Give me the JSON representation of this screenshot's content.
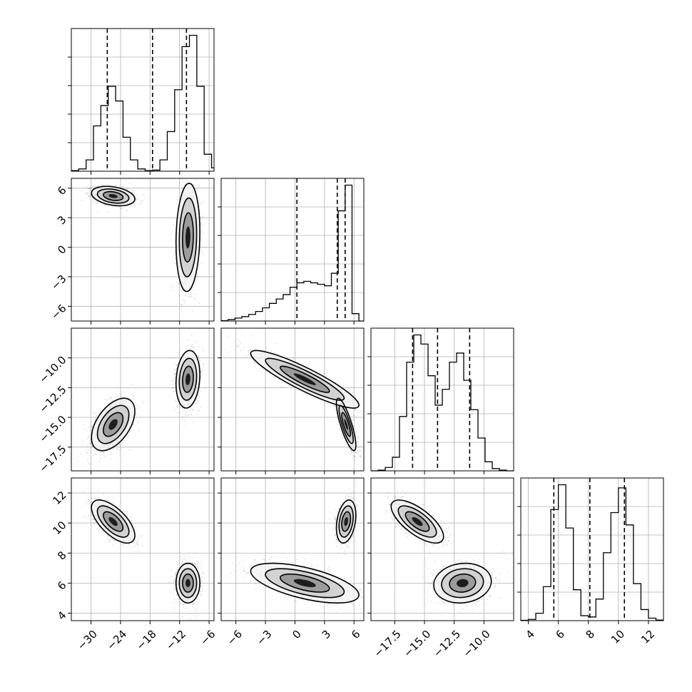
{
  "chart_data": {
    "type": "corner",
    "title": "",
    "parameters": [
      {
        "range": [
          -34,
          -5
        ],
        "ticks": [
          -30,
          -24,
          -18,
          -12,
          -6
        ],
        "tick_labels": [
          "−30",
          "−24",
          "−18",
          "−12",
          "−6"
        ],
        "quantiles": [
          -26.7,
          -17.5,
          -10.6
        ],
        "hist": {
          "edges": [
            -34,
            -32.5,
            -31,
            -29.5,
            -28,
            -26.5,
            -25,
            -23.5,
            -22,
            -20.5,
            -19,
            -17.5,
            -16,
            -14.5,
            -13,
            -11.5,
            -10,
            -8.5,
            -7,
            -5.5,
            -5
          ],
          "counts": [
            0.5,
            2,
            10,
            40,
            58,
            75,
            62,
            30,
            10,
            2,
            0.5,
            1,
            10,
            35,
            72,
            110,
            120,
            75,
            15,
            3
          ]
        }
      },
      {
        "range": [
          -7.5,
          7
        ],
        "ticks": [
          -6,
          -3,
          0,
          3,
          6
        ],
        "tick_labels": [
          "−6",
          "−3",
          "0",
          "3",
          "6"
        ],
        "quantiles": [
          0.2,
          4.3,
          5.1
        ],
        "hist": {
          "edges": [
            -7.5,
            -6.8,
            -6.1,
            -5.4,
            -4.7,
            -4,
            -3.3,
            -2.6,
            -1.9,
            -1.2,
            -0.5,
            0.2,
            0.9,
            1.6,
            2.3,
            3,
            3.7,
            4.4,
            5.1,
            5.8,
            6.5,
            7
          ],
          "counts": [
            0.5,
            2,
            4,
            6,
            9,
            13,
            18,
            24,
            30,
            36,
            46,
            52,
            54,
            52,
            50,
            48,
            65,
            150,
            185,
            10,
            0
          ]
        }
      },
      {
        "range": [
          -19.5,
          -7.5
        ],
        "ticks": [
          -17.5,
          -15,
          -12.5,
          -10
        ],
        "tick_labels": [
          "−17.5",
          "−15.0",
          "−12.5",
          "−10.0"
        ],
        "quantiles": [
          -16,
          -13.9,
          -11.2
        ],
        "hist": {
          "edges": [
            -19.5,
            -18.9,
            -18.3,
            -17.7,
            -17.1,
            -16.5,
            -15.9,
            -15.3,
            -14.7,
            -14.1,
            -13.5,
            -12.9,
            -12.3,
            -11.7,
            -11.1,
            -10.5,
            -9.9,
            -9.3,
            -8.7,
            -8.1,
            -7.5
          ],
          "counts": [
            0,
            3,
            15,
            60,
            240,
            480,
            600,
            560,
            420,
            290,
            360,
            480,
            520,
            400,
            270,
            145,
            40,
            10,
            3,
            0
          ]
        }
      },
      {
        "range": [
          3.5,
          13
        ],
        "ticks": [
          4,
          6,
          8,
          10,
          12
        ],
        "tick_labels": [
          "4",
          "6",
          "8",
          "10",
          "12"
        ],
        "quantiles": [
          5.7,
          8.1,
          10.4
        ],
        "hist": {
          "edges": [
            3.5,
            4,
            4.5,
            5,
            5.5,
            6,
            6.5,
            7,
            7.5,
            8,
            8.5,
            9,
            9.5,
            10,
            10.5,
            11,
            11.5,
            12,
            12.5,
            13
          ],
          "counts": [
            0.5,
            2,
            12,
            55,
            180,
            220,
            150,
            50,
            8,
            6,
            35,
            110,
            175,
            215,
            155,
            60,
            18,
            4,
            1
          ]
        }
      }
    ],
    "modes": [
      {
        "mean": [
          -25.5,
          5.2,
          -15.6,
          10.1
        ],
        "sd": [
          2.0,
          0.45,
          1.0,
          0.65
        ]
      },
      {
        "mean": [
          -10.3,
          1.0,
          -11.8,
          6.0
        ],
        "sd": [
          1.1,
          2.5,
          1.1,
          0.6
        ]
      }
    ]
  }
}
